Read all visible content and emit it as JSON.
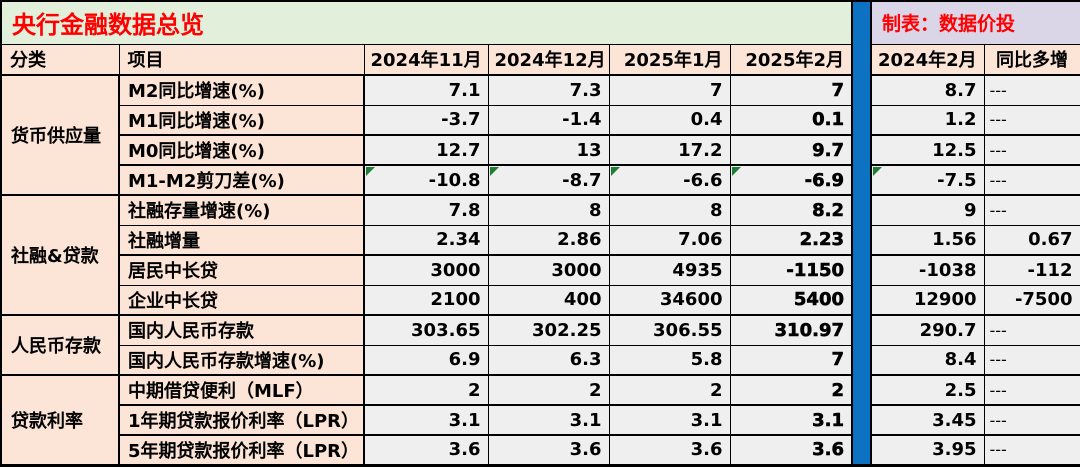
{
  "title": "央行金融数据总览",
  "credit": "制表：数据价投",
  "colors": {
    "title_text": "#ff0000",
    "title_bg_green": "#e2efda",
    "header_bg_peach": "#fce4d6",
    "cell_bg_gray": "#efefef",
    "credit_bg_lavender": "#dbd5e8",
    "divider_blue": "#0d72c2",
    "flag_green": "#1e7e34"
  },
  "headers": {
    "category": "分类",
    "item": "项目",
    "periods": [
      "2024年11月",
      "2024年12月",
      "2025年1月",
      "2025年2月"
    ],
    "compare_period": "2024年2月",
    "yoy": "同比多增"
  },
  "rows": [
    {
      "group": "货币供应量",
      "item": "M2同比增速(%)",
      "v": [
        "7.1",
        "7.3",
        "7",
        "7",
        "8.7",
        "---"
      ]
    },
    {
      "item": "M1同比增速(%)",
      "v": [
        "-3.7",
        "-1.4",
        "0.4",
        "0.1",
        "1.2",
        "---"
      ]
    },
    {
      "item": "M0同比增速(%)",
      "v": [
        "12.7",
        "13",
        "17.2",
        "9.7",
        "12.5",
        "---"
      ]
    },
    {
      "item": "M1-M2剪刀差(%)",
      "v": [
        "-10.8",
        "-8.7",
        "-6.6",
        "-6.9",
        "-7.5",
        "---"
      ]
    },
    {
      "group": "社融&贷款",
      "item": "社融存量增速(%)",
      "v": [
        "7.8",
        "8",
        "8",
        "8.2",
        "9",
        "---"
      ]
    },
    {
      "item": "社融增量",
      "v": [
        "2.34",
        "2.86",
        "7.06",
        "2.23",
        "1.56",
        "0.67"
      ]
    },
    {
      "item": "居民中长贷",
      "v": [
        "3000",
        "3000",
        "4935",
        "-1150",
        "-1038",
        "-112"
      ]
    },
    {
      "item": "企业中长贷",
      "v": [
        "2100",
        "400",
        "34600",
        "5400",
        "12900",
        "-7500"
      ]
    },
    {
      "group": "人民币存款",
      "item": "国内人民币存款",
      "v": [
        "303.65",
        "302.25",
        "306.55",
        "310.97",
        "290.7",
        "---"
      ]
    },
    {
      "item": "国内人民币存款增速(%)",
      "v": [
        "6.9",
        "6.3",
        "5.8",
        "7",
        "8.4",
        "---"
      ]
    },
    {
      "group": "贷款利率",
      "item": "中期借贷便利（MLF）",
      "v": [
        "2",
        "2",
        "2",
        "2",
        "2.5",
        "---"
      ]
    },
    {
      "item": "1年期贷款报价利率（LPR）",
      "v": [
        "3.1",
        "3.1",
        "3.1",
        "3.1",
        "3.45",
        "---"
      ]
    },
    {
      "item": "5年期贷款报价利率（LPR）",
      "v": [
        "3.6",
        "3.6",
        "3.6",
        "3.6",
        "3.95",
        "---"
      ]
    }
  ]
}
